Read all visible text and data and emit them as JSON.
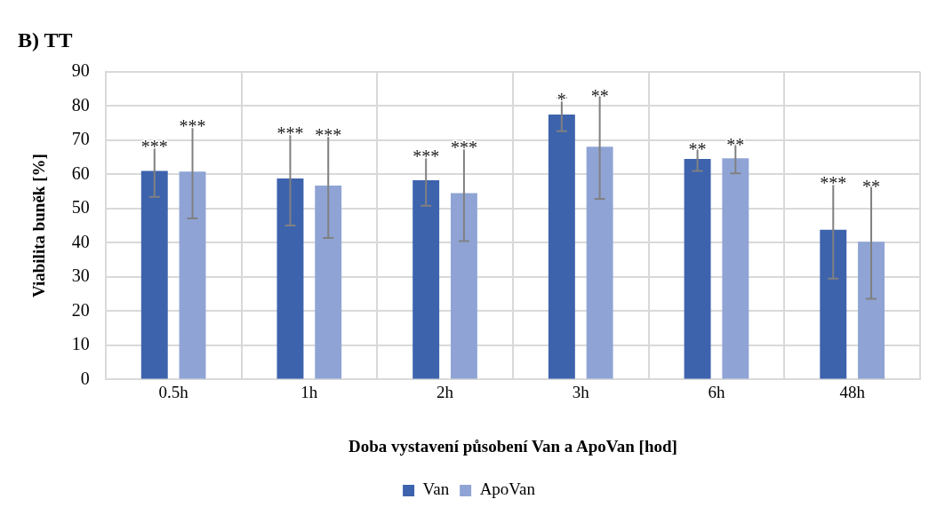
{
  "chart_data": {
    "type": "bar",
    "title": "B) TT",
    "xlabel": "Doba vystavení působení Van a ApoVan [hod]",
    "ylabel": "Viabilita buněk [%]",
    "categories": [
      "0.5h",
      "1h",
      "2h",
      "3h",
      "6h",
      "48h"
    ],
    "series": [
      {
        "name": "Van",
        "color": "#3d63ad",
        "values": [
          61.0,
          58.8,
          58.3,
          77.5,
          64.5,
          43.8
        ],
        "errors": [
          7.6,
          13.8,
          7.5,
          4.9,
          3.5,
          14.3
        ],
        "value_labels": [
          "***",
          "***",
          "***",
          "*",
          "**",
          "***"
        ]
      },
      {
        "name": "ApoVan",
        "color": "#8fa4d5",
        "values": [
          60.8,
          56.7,
          54.5,
          68.1,
          64.7,
          40.3
        ],
        "errors": [
          13.7,
          15.3,
          14.0,
          15.3,
          4.4,
          16.7
        ],
        "value_labels": [
          "***",
          "***",
          "***",
          "**",
          "**",
          "**"
        ]
      }
    ],
    "ylim": [
      0,
      90
    ],
    "yticks": [
      0,
      10,
      20,
      30,
      40,
      50,
      60,
      70,
      80,
      90
    ],
    "grid": true,
    "legend": "bottom"
  }
}
